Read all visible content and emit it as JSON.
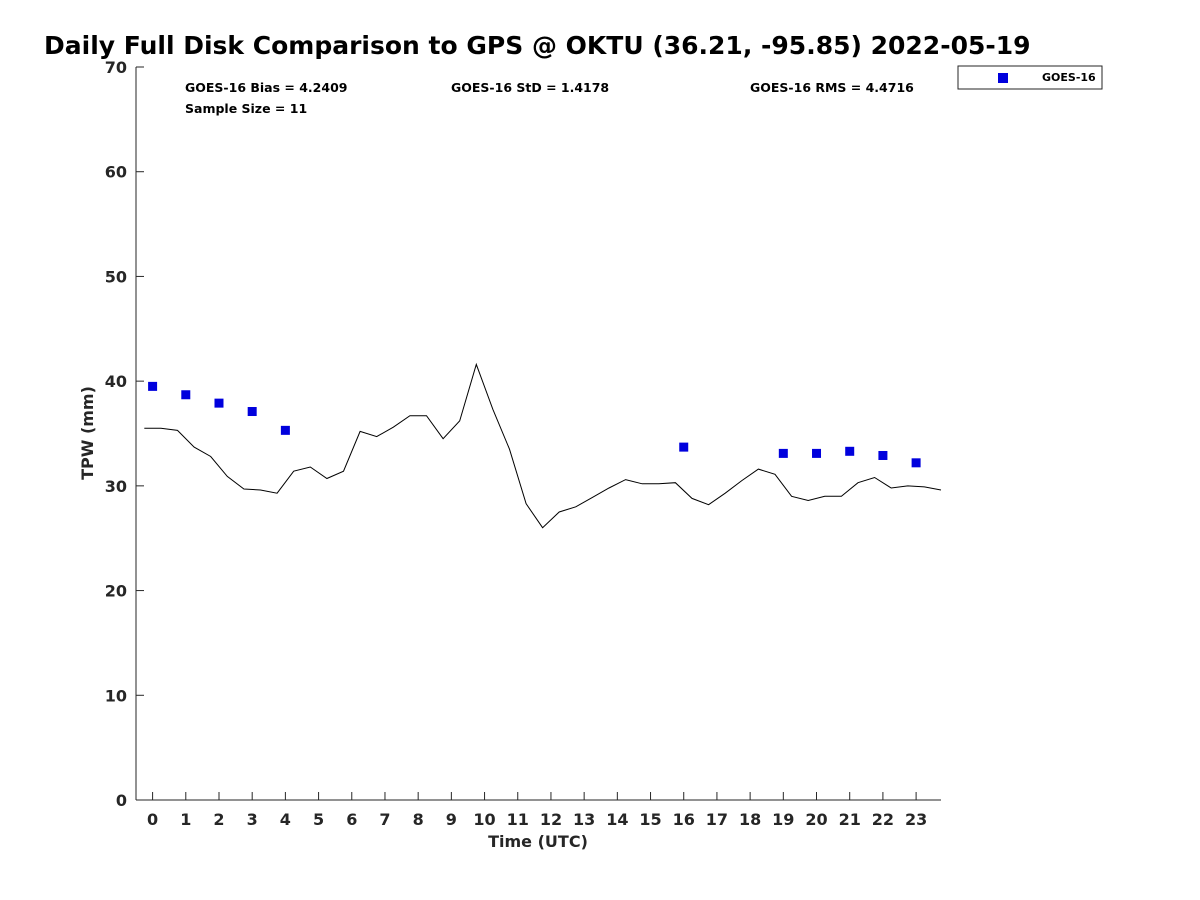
{
  "chart_data": {
    "type": "line",
    "title": "Daily Full Disk Comparison to GPS @ OKTU (36.21, -95.85) 2022-05-19",
    "xlabel": "Time (UTC)",
    "ylabel": "TPW (mm)",
    "xlim": [
      -0.5,
      23.75
    ],
    "ylim": [
      0,
      70
    ],
    "xticks": [
      0,
      1,
      2,
      3,
      4,
      5,
      6,
      7,
      8,
      9,
      10,
      11,
      12,
      13,
      14,
      15,
      16,
      17,
      18,
      19,
      20,
      21,
      22,
      23
    ],
    "yticks": [
      0,
      10,
      20,
      30,
      40,
      50,
      60,
      70
    ],
    "grid": false,
    "legend_position": "top-right (outside)",
    "stats": {
      "bias": "GOES-16 Bias = 4.2409",
      "std": "GOES-16 StD = 1.4178",
      "rms": "GOES-16 RMS = 4.4716",
      "sample": "Sample Size = 11"
    },
    "series": [
      {
        "kind": "line",
        "color": "#000000",
        "x": [
          -0.25,
          0.25,
          0.75,
          1.25,
          1.75,
          2.25,
          2.75,
          3.25,
          3.75,
          4.25,
          4.75,
          5.25,
          5.75,
          6.25,
          6.75,
          7.25,
          7.75,
          8.25,
          8.75,
          9.25,
          9.75,
          10.25,
          10.75,
          11.25,
          11.75,
          12.25,
          12.75,
          13.25,
          13.75,
          14.25,
          14.75,
          15.25,
          15.75,
          16.25,
          16.75,
          17.25,
          17.75,
          18.25,
          18.75,
          19.25,
          19.75,
          20.25,
          20.75,
          21.25,
          21.75,
          22.25,
          22.75,
          23.25,
          23.75
        ],
        "values": [
          35.5,
          35.5,
          35.3,
          33.7,
          32.8,
          30.9,
          29.7,
          29.6,
          29.3,
          31.4,
          31.8,
          30.7,
          31.4,
          35.2,
          34.7,
          35.6,
          36.7,
          36.7,
          34.5,
          36.2,
          41.6,
          37.3,
          33.5,
          28.3,
          26.0,
          27.5,
          28.0,
          28.9,
          29.8,
          30.6,
          30.2,
          30.2,
          30.3,
          28.8,
          28.2,
          29.3,
          30.5,
          31.6,
          31.1,
          29.0,
          28.6,
          29.0,
          29.0,
          30.3,
          30.8,
          29.8,
          30.0,
          29.9,
          29.6
        ]
      },
      {
        "kind": "scatter",
        "name": "GOES-16",
        "color": "#0000dd",
        "x": [
          0,
          1,
          2,
          3,
          4,
          16,
          19,
          20,
          21,
          22,
          23
        ],
        "values": [
          39.5,
          38.7,
          37.9,
          37.1,
          35.3,
          33.7,
          33.1,
          33.1,
          33.3,
          32.9,
          32.2
        ]
      }
    ]
  }
}
